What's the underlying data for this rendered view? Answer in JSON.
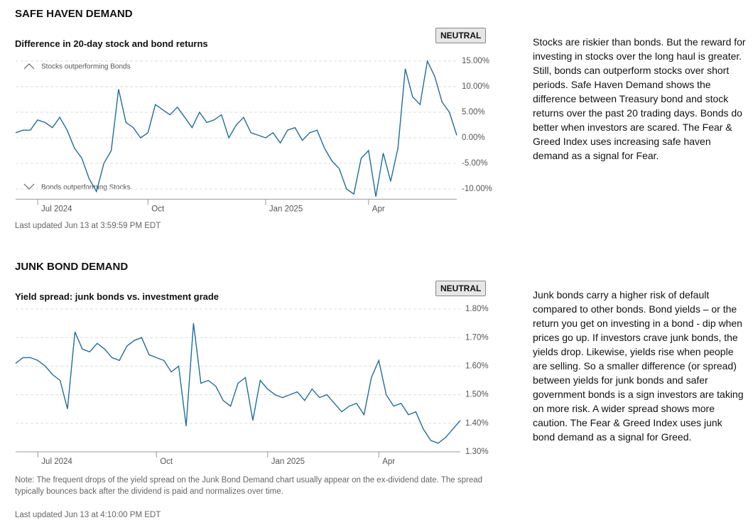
{
  "sections": [
    {
      "heading": "SAFE HAVEN DEMAND",
      "badge": "NEUTRAL",
      "description": "Stocks are riskier than bonds. But the reward for investing in stocks over the long haul is greater. Still, bonds can outperform stocks over short periods. Safe Haven Demand shows the difference between Treasury bond and stock returns over the past 20 trading days. Bonds do better when investors are scared. The Fear & Greed Index uses increasing safe haven demand as a signal for Fear.",
      "updated": "Last updated Jun 13 at 3:59:59 PM EDT"
    },
    {
      "heading": "JUNK BOND DEMAND",
      "badge": "NEUTRAL",
      "description": "Junk bonds carry a higher risk of default compared to other bonds. Bond yields – or the return you get on investing in a bond - dip when prices go up. If investors crave junk bonds, the yields drop. Likewise, yields rise when people are selling. So a smaller difference (or spread) between yields for junk bonds and safer government bonds is a sign investors are taking on more risk. A wider spread shows more caution. The Fear & Greed Index uses junk bond demand as a signal for Greed.",
      "note": "Note: The frequent drops of the yield spread on the Junk Bond Demand chart usually appear on the ex-dividend date. The spread typically bounces back after the dividend is paid and normalizes over time.",
      "updated": "Last updated Jun 13 at 4:10:00 PM EDT"
    }
  ],
  "chart_data": [
    {
      "type": "line",
      "title": "Difference in 20-day stock and bond returns",
      "annotations": [
        "Stocks outperforming Bonds",
        "Bonds outperforming Stocks"
      ],
      "categories": [
        null,
        null,
        null,
        "Jul 2024",
        null,
        null,
        null,
        null,
        null,
        null,
        null,
        null,
        null,
        null,
        null,
        null,
        null,
        null,
        "Oct",
        null,
        null,
        null,
        null,
        null,
        null,
        null,
        null,
        null,
        null,
        null,
        null,
        null,
        null,
        null,
        "Jan 2025",
        null,
        null,
        null,
        null,
        null,
        null,
        null,
        null,
        null,
        null,
        null,
        null,
        null,
        "Apr",
        null,
        null,
        null,
        null,
        null,
        null,
        null,
        null,
        null,
        null,
        null,
        null
      ],
      "values": [
        1.0,
        1.5,
        1.5,
        3.5,
        3.0,
        2.0,
        4.0,
        1.5,
        -2.0,
        -4.0,
        -8.0,
        -10.5,
        -5.0,
        -2.5,
        9.5,
        3.0,
        2.0,
        0.0,
        1.0,
        6.5,
        5.5,
        4.5,
        6.0,
        4.0,
        2.0,
        5.0,
        3.0,
        3.5,
        4.5,
        0.0,
        2.5,
        4.0,
        1.0,
        0.5,
        0.0,
        1.0,
        -1.0,
        1.5,
        2.0,
        -0.5,
        1.0,
        1.5,
        -2.0,
        -4.5,
        -6.0,
        -10.0,
        -11.0,
        -4.0,
        -2.5,
        -11.5,
        -3.0,
        -8.5,
        -2.0,
        13.5,
        8.0,
        6.5,
        15.0,
        12.0,
        7.0,
        5.0,
        0.5
      ],
      "color": "#1f6e9c",
      "ylim": [
        -12,
        16
      ],
      "yticks": [
        {
          "value": -10,
          "label": "-10.00%"
        },
        {
          "value": -5,
          "label": "-5.00%"
        },
        {
          "value": 0,
          "label": "0.00%"
        },
        {
          "value": 5,
          "label": "5.00%"
        },
        {
          "value": 10,
          "label": "10.00%"
        },
        {
          "value": 15,
          "label": "15.00%"
        }
      ],
      "grid": true
    },
    {
      "type": "line",
      "title": "Yield spread: junk bonds vs. investment grade",
      "categories": [
        null,
        null,
        null,
        "Jul 2024",
        null,
        null,
        null,
        null,
        null,
        null,
        null,
        null,
        null,
        null,
        null,
        null,
        null,
        null,
        null,
        "Oct",
        null,
        null,
        null,
        null,
        null,
        null,
        null,
        null,
        null,
        null,
        null,
        null,
        null,
        null,
        "Jan 2025",
        null,
        null,
        null,
        null,
        null,
        null,
        null,
        null,
        null,
        null,
        null,
        null,
        null,
        null,
        "Apr",
        null,
        null,
        null,
        null,
        null,
        null,
        null,
        null,
        null,
        null,
        null
      ],
      "values": [
        1.61,
        1.63,
        1.63,
        1.62,
        1.6,
        1.57,
        1.55,
        1.45,
        1.72,
        1.66,
        1.65,
        1.68,
        1.66,
        1.63,
        1.62,
        1.67,
        1.69,
        1.7,
        1.64,
        1.63,
        1.62,
        1.58,
        1.6,
        1.39,
        1.75,
        1.54,
        1.55,
        1.53,
        1.48,
        1.46,
        1.54,
        1.56,
        1.41,
        1.55,
        1.52,
        1.5,
        1.49,
        1.5,
        1.51,
        1.48,
        1.52,
        1.49,
        1.5,
        1.47,
        1.44,
        1.46,
        1.47,
        1.43,
        1.56,
        1.62,
        1.5,
        1.46,
        1.47,
        1.43,
        1.44,
        1.38,
        1.34,
        1.33,
        1.35,
        1.38,
        1.41
      ],
      "color": "#1f6e9c",
      "ylim": [
        1.3,
        1.82
      ],
      "yticks": [
        {
          "value": 1.3,
          "label": "1.30%"
        },
        {
          "value": 1.4,
          "label": "1.40%"
        },
        {
          "value": 1.5,
          "label": "1.50%"
        },
        {
          "value": 1.6,
          "label": "1.60%"
        },
        {
          "value": 1.7,
          "label": "1.70%"
        },
        {
          "value": 1.8,
          "label": "1.80%"
        }
      ],
      "grid": true
    }
  ]
}
